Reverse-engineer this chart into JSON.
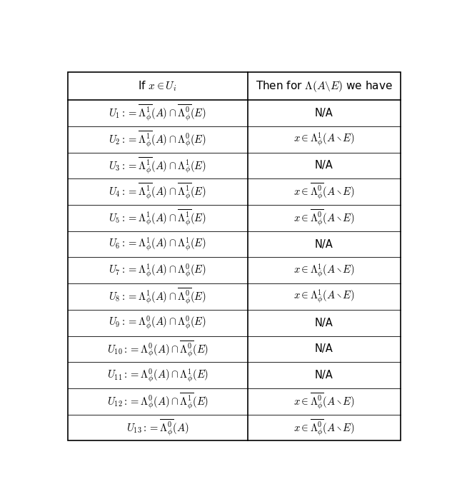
{
  "col1_header": "If $x \\in U_i$",
  "col2_header": "Then for $\\Lambda(A\\backslash E)$ we have",
  "rows": [
    [
      "$U_1 := \\overline{\\Lambda^1_{\\phi}}(A) \\cap \\overline{\\Lambda^0_{\\phi}}(E)$",
      "N/A"
    ],
    [
      "$U_2 := \\overline{\\Lambda^1_{\\phi}}(A) \\cap \\Lambda^0_{\\phi}(E)$",
      "$x \\in \\Lambda^1_{\\phi}(A \\setminus E)$"
    ],
    [
      "$U_3 := \\overline{\\Lambda^1_{\\phi}}(A) \\cap \\Lambda^1_{\\phi}(E)$",
      "N/A"
    ],
    [
      "$U_4 := \\overline{\\Lambda^1_{\\phi}}(A) \\cap \\overline{\\Lambda^1_{\\phi}}(E)$",
      "$x \\in \\overline{\\Lambda^0_{\\phi}}(A \\setminus E)$"
    ],
    [
      "$U_5 := \\Lambda^1_{\\phi}(A) \\cap \\overline{\\Lambda^1_{\\phi}}(E)$",
      "$x \\in \\overline{\\Lambda^0_{\\phi}}(A \\setminus E)$"
    ],
    [
      "$U_6 := \\Lambda^1_{\\phi}(A) \\cap \\Lambda^1_{\\phi}(E)$",
      "N/A"
    ],
    [
      "$U_7 := \\Lambda^1_{\\phi}(A) \\cap \\Lambda^0_{\\phi}(E)$",
      "$x \\in \\Lambda^1_{\\phi}(A \\setminus E)$"
    ],
    [
      "$U_8 := \\Lambda^1_{\\phi}(A) \\cap \\overline{\\Lambda^0_{\\phi}}(E)$",
      "$x \\in \\Lambda^1_{\\phi}(A \\setminus E)$"
    ],
    [
      "$U_9 := \\Lambda^0_{\\phi}(A) \\cap \\Lambda^0_{\\phi}(E)$",
      "N/A"
    ],
    [
      "$U_{10} := \\Lambda^0_{\\phi}(A) \\cap \\overline{\\Lambda^0_{\\phi}}(E)$",
      "N/A"
    ],
    [
      "$U_{11} := \\Lambda^0_{\\phi}(A) \\cap \\Lambda^1_{\\phi}(E)$",
      "N/A"
    ],
    [
      "$U_{12} := \\Lambda^0_{\\phi}(A) \\cap \\overline{\\Lambda^1_{\\phi}}(E)$",
      "$x \\in \\overline{\\Lambda^0_{\\phi}}(A \\setminus E)$"
    ],
    [
      "$U_{13} := \\overline{\\Lambda^0_{\\phi}}(A)$",
      "$x \\in \\overline{\\Lambda^0_{\\phi}}(A \\setminus E)$"
    ]
  ],
  "fig_width": 6.4,
  "fig_height": 7.06,
  "background_color": "#ffffff",
  "line_color": "#000000",
  "font_size": 11
}
